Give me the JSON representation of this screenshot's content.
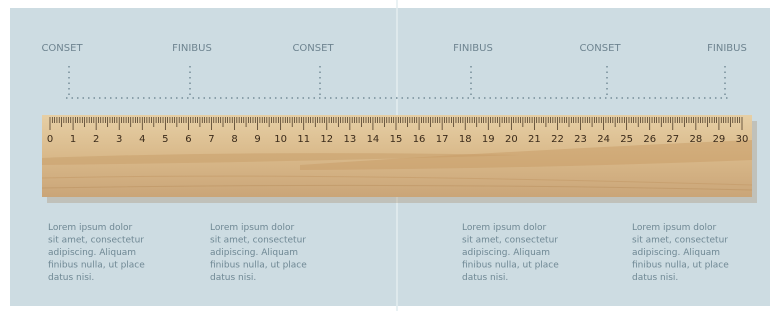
{
  "labels": [
    "CONSET",
    "FINIBUS",
    "CONSET",
    "FINIBUS",
    "CONSET",
    "FINIBUS"
  ],
  "ruler": {
    "numbers": [
      0,
      1,
      2,
      3,
      4,
      5,
      6,
      7,
      8,
      9,
      10,
      11,
      12,
      13,
      14,
      15,
      16,
      17,
      18,
      19,
      20,
      21,
      22,
      23,
      24,
      25,
      26,
      27,
      28,
      29,
      30
    ]
  },
  "paragraphs": [
    {
      "lines": [
        "Lorem ipsum dolor",
        "sit amet, consectetur",
        "adipiscing. Aliquam",
        "finibus nulla, ut place",
        "datus nisi."
      ]
    },
    {
      "lines": [
        "Lorem ipsum dolor",
        "sit amet, consectetur",
        "adipiscing. Aliquam",
        "finibus nulla, ut place",
        "datus nisi."
      ]
    },
    {
      "lines": [
        "Lorem ipsum dolor",
        "sit amet, consectetur",
        "adipiscing. Aliquam",
        "finibus nulla, ut place",
        "datus nisi."
      ]
    },
    {
      "lines": [
        "Lorem ipsum dolor",
        "sit amet, consectetur",
        "adipiscing. Aliquam",
        "finibus nulla, ut place",
        "datus nisi."
      ]
    }
  ]
}
